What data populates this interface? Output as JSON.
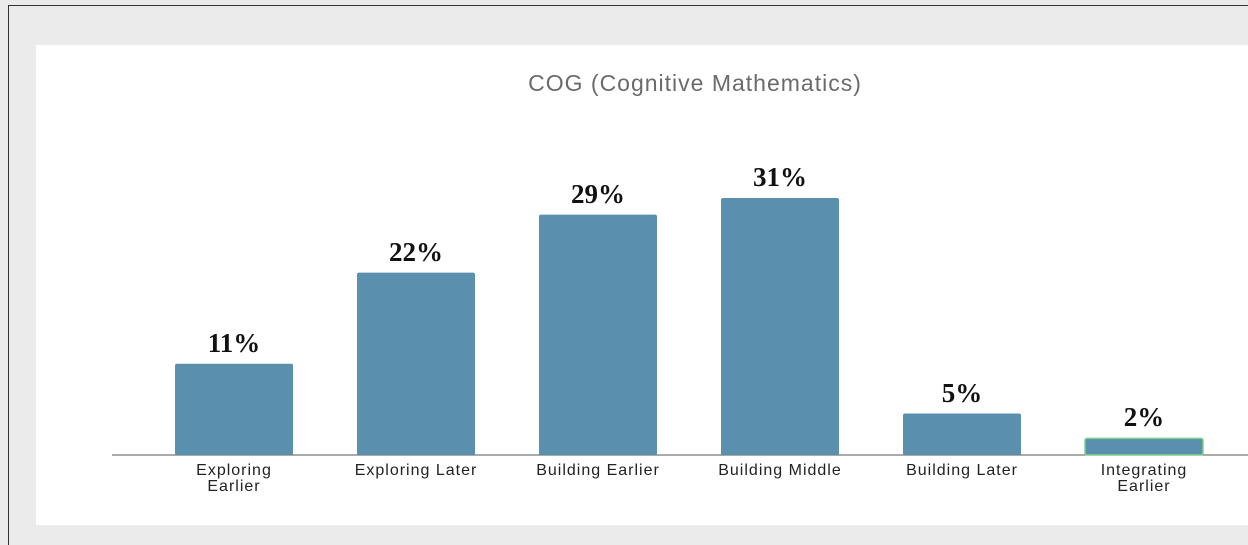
{
  "chart_data": {
    "type": "bar",
    "title": "COG (Cognitive Mathematics)",
    "categories": [
      "Exploring Earlier",
      "Exploring Later",
      "Building Earlier",
      "Building Middle",
      "Building Later",
      "Integrating Earlier"
    ],
    "values": [
      11,
      22,
      29,
      31,
      5,
      2
    ],
    "value_labels": [
      "11%",
      "22%",
      "29%",
      "31%",
      "5%",
      "2%"
    ],
    "color": "#5a8fae"
  }
}
